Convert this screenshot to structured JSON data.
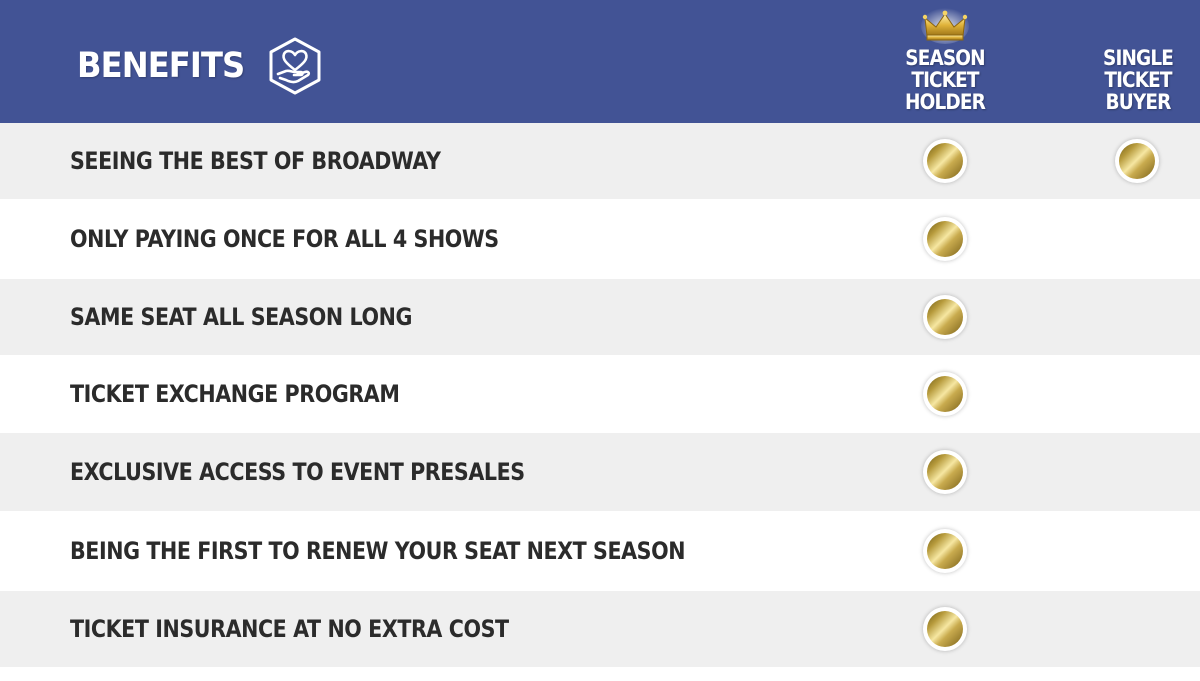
{
  "header": {
    "title": "BENEFITS",
    "icon": "heart-in-hand-icon",
    "background_color": "#425395",
    "columns": [
      {
        "name": "season",
        "lines": [
          "SEASON",
          "TICKET",
          "HOLDER"
        ],
        "badge_icon": "crown-icon"
      },
      {
        "name": "single",
        "lines": [
          "SINGLE",
          "TICKET",
          "BUYER"
        ]
      }
    ]
  },
  "rows": [
    {
      "label": "SEEING THE BEST OF BROADWAY",
      "season": true,
      "single": true
    },
    {
      "label": "ONLY PAYING ONCE FOR ALL 4 SHOWS",
      "season": true,
      "single": false
    },
    {
      "label": "SAME SEAT ALL SEASON LONG",
      "season": true,
      "single": false
    },
    {
      "label": "TICKET EXCHANGE PROGRAM",
      "season": true,
      "single": false
    },
    {
      "label": "EXCLUSIVE ACCESS TO EVENT PRESALES",
      "season": true,
      "single": false
    },
    {
      "label": "BEING THE FIRST TO RENEW YOUR SEAT NEXT SEASON",
      "season": true,
      "single": false
    },
    {
      "label": "TICKET INSURANCE AT NO EXTRA COST",
      "season": true,
      "single": false
    }
  ],
  "colors": {
    "row_alt": "#efefef",
    "row_plain": "#ffffff",
    "text": "#2b2b2b",
    "gold": "#c9ab4e"
  },
  "check_icon": "gold-coin-icon"
}
